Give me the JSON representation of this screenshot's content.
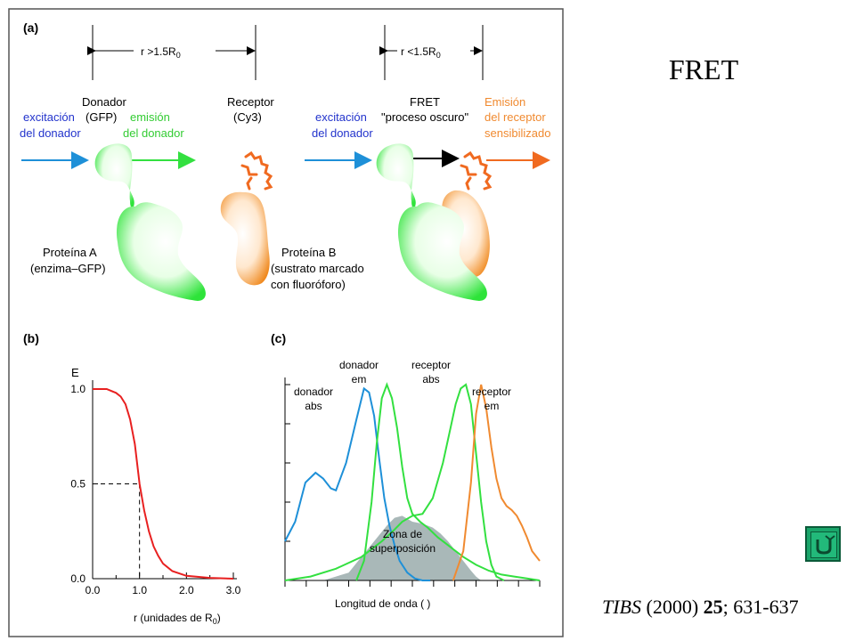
{
  "slide": {
    "title": "FRET",
    "citation": {
      "journal": "TIBS",
      "year": "(2000)",
      "volume": "25",
      "pages": "; 631-637"
    }
  },
  "colors": {
    "blue": "#1e90d8",
    "green": "#33e040",
    "orange": "#f08a30",
    "red": "#e82020",
    "overlap_fill": "#a9b8b8"
  },
  "panel_a": {
    "label": "(a)",
    "dist_far": "r >1.5R",
    "dist_near": "r <1.5R",
    "sub": "0",
    "donor_title_1": "Donador",
    "donor_title_2": "(GFP)",
    "exc_1": "excitación",
    "exc_2": "del donador",
    "emi_1": "emisión",
    "emi_2": "del donador",
    "receptor_1": "Receptor",
    "receptor_2": "(Cy3)",
    "exc_b_1": "excitación",
    "exc_b_2": "del donador",
    "fret_1": "FRET",
    "fret_2": "\"proceso oscuro\"",
    "sens_1": "Emisión",
    "sens_2": "del receptor",
    "sens_3": "sensibilizado",
    "prot_a_1": "Proteína A",
    "prot_a_2": "(enzima–GFP)",
    "prot_b_1": "Proteína B",
    "prot_b_2": "(sustrato marcado",
    "prot_b_3": "con fluoróforo)"
  },
  "panel_b": {
    "label": "(b)",
    "chart_data": {
      "type": "line",
      "ylabel": "E",
      "xlabel": "r (unidades de R",
      "xlabel_sub": "0",
      "xlabel_end": ")",
      "xlim": [
        0,
        3
      ],
      "ylim": [
        0,
        1
      ],
      "x_ticks": [
        "0.0",
        "1.0",
        "2.0",
        "3.0"
      ],
      "x_minor": [
        "0.5",
        "1.5",
        "2.5"
      ],
      "y_ticks": [
        "0.0",
        "0.5",
        "1.0"
      ],
      "series": [
        {
          "x": [
            0.0,
            0.3,
            0.5,
            0.6,
            0.7,
            0.8,
            0.9,
            1.0,
            1.1,
            1.2,
            1.3,
            1.4,
            1.5,
            1.7,
            2.0,
            2.5,
            3.0
          ],
          "y": [
            1.0,
            1.0,
            0.98,
            0.96,
            0.92,
            0.84,
            0.71,
            0.5,
            0.36,
            0.25,
            0.17,
            0.12,
            0.08,
            0.04,
            0.015,
            0.004,
            0.0
          ]
        }
      ],
      "guide": {
        "x": 1.0,
        "y": 0.5
      }
    }
  },
  "panel_c": {
    "label": "(c)",
    "chart_data": {
      "type": "line",
      "xlabel": "Longitud de onda (  )",
      "xlim": [
        0,
        100
      ],
      "ylim": [
        0,
        1
      ],
      "series": [
        {
          "name": "donador abs",
          "label_1": "donador",
          "label_2": "abs",
          "x": [
            0,
            4,
            8,
            12,
            15,
            18,
            20,
            24,
            28,
            31,
            33,
            35,
            37,
            39,
            41,
            43,
            45,
            48,
            51,
            54,
            57
          ],
          "y": [
            0.2,
            0.3,
            0.5,
            0.55,
            0.52,
            0.47,
            0.46,
            0.6,
            0.82,
            0.98,
            0.96,
            0.84,
            0.62,
            0.42,
            0.28,
            0.18,
            0.1,
            0.04,
            0.01,
            0.0,
            0.0
          ]
        },
        {
          "name": "donador em",
          "label_1": "donador",
          "label_2": "em",
          "x": [
            28,
            31,
            34,
            36,
            38,
            40,
            42,
            44,
            46,
            48,
            50,
            53,
            56,
            60,
            65,
            70,
            75,
            80,
            85,
            90,
            95,
            100
          ],
          "y": [
            0.0,
            0.1,
            0.4,
            0.7,
            0.93,
            1.0,
            0.93,
            0.78,
            0.58,
            0.42,
            0.34,
            0.3,
            0.27,
            0.22,
            0.17,
            0.12,
            0.08,
            0.05,
            0.03,
            0.02,
            0.01,
            0.0
          ]
        },
        {
          "name": "receptor abs",
          "label_1": "receptor",
          "label_2": "abs",
          "x": [
            0,
            10,
            20,
            30,
            38,
            43,
            46,
            50,
            54,
            58,
            62,
            65,
            67,
            69,
            71,
            73,
            75,
            77,
            79,
            81,
            83,
            86
          ],
          "y": [
            0.0,
            0.02,
            0.06,
            0.12,
            0.2,
            0.26,
            0.3,
            0.33,
            0.34,
            0.42,
            0.6,
            0.78,
            0.9,
            0.98,
            1.0,
            0.9,
            0.65,
            0.4,
            0.2,
            0.08,
            0.02,
            0.0
          ]
        },
        {
          "name": "receptor em",
          "label_1": "receptor",
          "label_2": "em",
          "x": [
            66,
            70,
            73,
            75,
            77,
            79,
            81,
            83,
            85,
            87,
            89,
            91,
            93,
            95,
            97,
            100
          ],
          "y": [
            0.0,
            0.15,
            0.5,
            0.85,
            1.0,
            0.88,
            0.68,
            0.52,
            0.42,
            0.38,
            0.36,
            0.33,
            0.28,
            0.22,
            0.15,
            0.1
          ]
        }
      ],
      "overlap": {
        "label_1": "Zona de",
        "label_2": "superposición",
        "x": [
          15,
          25,
          35,
          40,
          43,
          46,
          50,
          54,
          58,
          61,
          64,
          67,
          70,
          73,
          75,
          77
        ],
        "y": [
          0.0,
          0.04,
          0.2,
          0.28,
          0.32,
          0.33,
          0.3,
          0.29,
          0.27,
          0.24,
          0.2,
          0.15,
          0.1,
          0.05,
          0.02,
          0.0
        ]
      }
    }
  }
}
